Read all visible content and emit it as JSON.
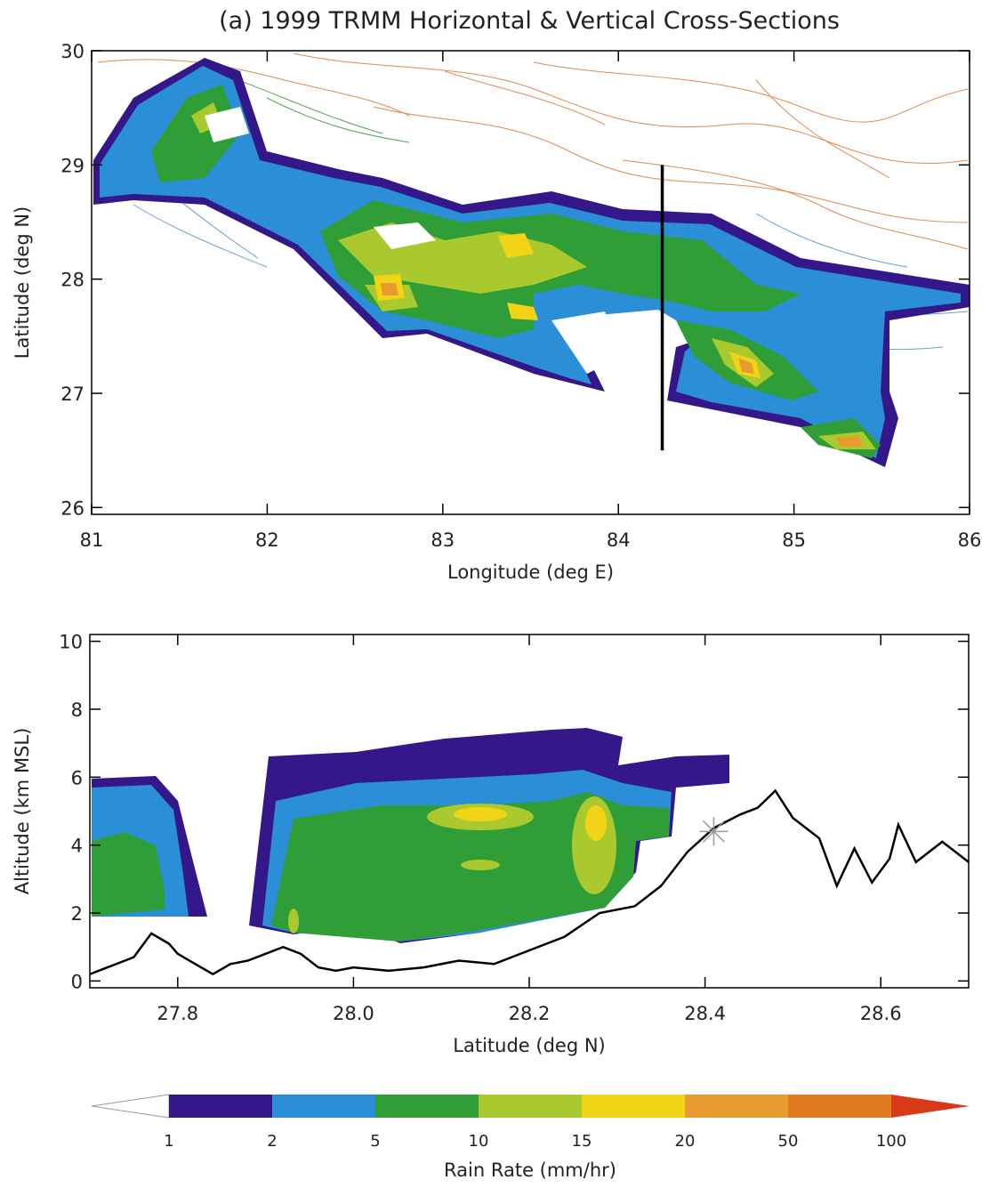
{
  "chart_data": [
    {
      "type": "map",
      "title": "(a) 1999 TRMM Horizontal & Vertical Cross-Sections",
      "xlabel": "Longitude (deg E)",
      "ylabel": "Latitude (deg N)",
      "xlim": [
        81,
        86
      ],
      "ylim": [
        25.94,
        30
      ],
      "xticks": [
        81,
        82,
        83,
        84,
        85,
        86
      ],
      "yticks": [
        26,
        27,
        28,
        29,
        30
      ],
      "section_line": {
        "x": [
          84.25,
          84.25
        ],
        "y": [
          26.5,
          29.0
        ],
        "color": "#000000"
      }
    },
    {
      "type": "section",
      "xlabel": "Latitude (deg N)",
      "ylabel": "Altitude (km MSL)",
      "xlim": [
        27.7,
        28.7
      ],
      "ylim": [
        -0.2,
        10.2
      ],
      "xticks": [
        27.8,
        {
          "value": 28,
          "label": "28.0"
        },
        28.2,
        28.4,
        28.6
      ],
      "yticks": [
        0,
        2,
        4,
        6,
        8,
        10
      ],
      "x": [
        27.7,
        27.72,
        27.75,
        27.77,
        27.79,
        27.8,
        27.82,
        27.84,
        27.86,
        27.88,
        27.9,
        27.92,
        27.94,
        27.96,
        27.98,
        28.0,
        28.04,
        28.08,
        28.12,
        28.16,
        28.2,
        28.24,
        28.28,
        28.32,
        28.35,
        28.38,
        28.41,
        28.44,
        28.46,
        28.48,
        28.5,
        28.53,
        28.55,
        28.57,
        28.59,
        28.61,
        28.62,
        28.64,
        28.67,
        28.7
      ],
      "values": [
        0.2,
        0.4,
        0.7,
        1.4,
        1.1,
        0.8,
        0.5,
        0.2,
        0.5,
        0.6,
        0.8,
        1.0,
        0.8,
        0.4,
        0.3,
        0.4,
        0.3,
        0.4,
        0.6,
        0.5,
        0.9,
        1.3,
        2.0,
        2.2,
        2.8,
        3.8,
        4.5,
        4.9,
        5.1,
        5.6,
        4.8,
        4.2,
        2.8,
        3.9,
        2.9,
        3.6,
        4.6,
        3.5,
        4.1,
        3.5
      ],
      "color": "#000000",
      "marker": {
        "x": 28.41,
        "y": 4.4,
        "color": "#999999"
      }
    },
    {
      "type": "colorbar",
      "label": "Rain Rate (mm/hr)",
      "ticks": [
        1,
        2,
        5,
        10,
        15,
        20,
        50,
        100
      ],
      "colors": [
        "#ffffff",
        "#34188a",
        "#2a8fd6",
        "#2f9e36",
        "#a9c92e",
        "#f2d417",
        "#e89b2f",
        "#e07b22",
        "#d83a18"
      ]
    }
  ]
}
